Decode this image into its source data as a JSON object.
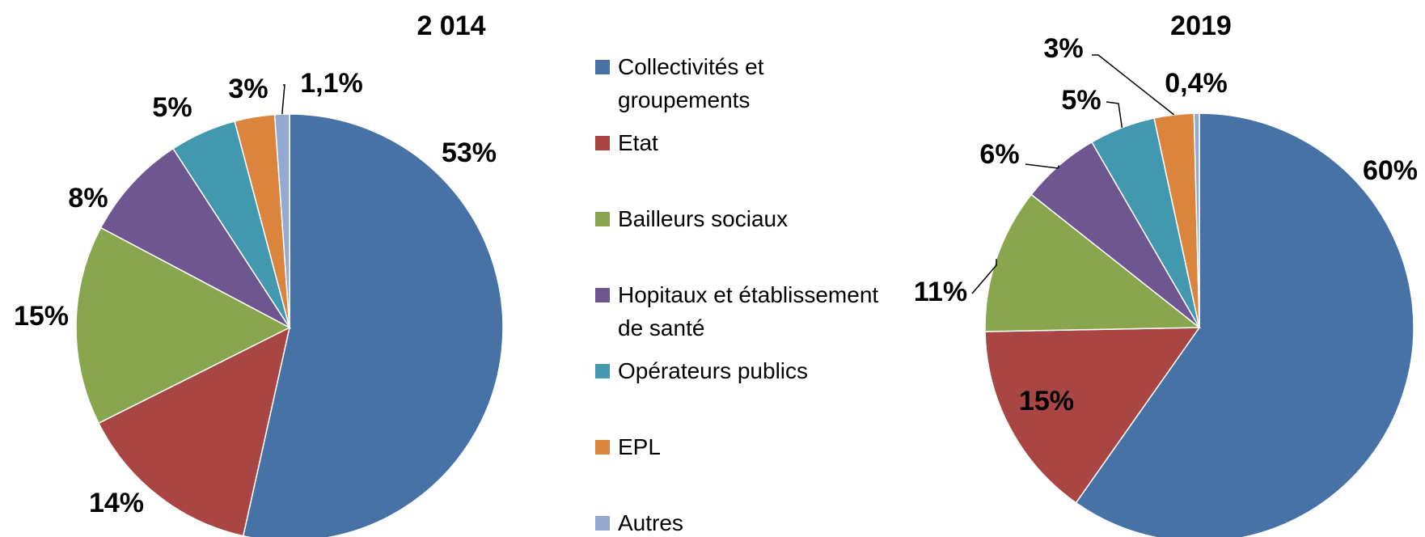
{
  "chart_data": [
    {
      "type": "pie",
      "title": "2 014",
      "values": [
        53,
        14,
        15,
        8,
        5,
        3,
        1.1
      ],
      "value_labels": [
        "53%",
        "14%",
        "15%",
        "8%",
        "5%",
        "3%",
        "1,1%"
      ]
    },
    {
      "type": "pie",
      "title": "2019",
      "values": [
        60,
        15,
        11,
        6,
        5,
        3,
        0.4
      ],
      "value_labels": [
        "60%",
        "15%",
        "11%",
        "6%",
        "5%",
        "3%",
        "0,4%"
      ]
    }
  ],
  "legend": {
    "categories": [
      "Collectivités et groupements",
      "Etat",
      "Bailleurs sociaux",
      "Hopitaux et établissement de santé",
      "Opérateurs publics",
      "EPL",
      "Autres"
    ],
    "colors": [
      "#4672a6",
      "#a94542",
      "#89a54e",
      "#6e5691",
      "#4298ae",
      "#db843d",
      "#93a9cf"
    ]
  }
}
